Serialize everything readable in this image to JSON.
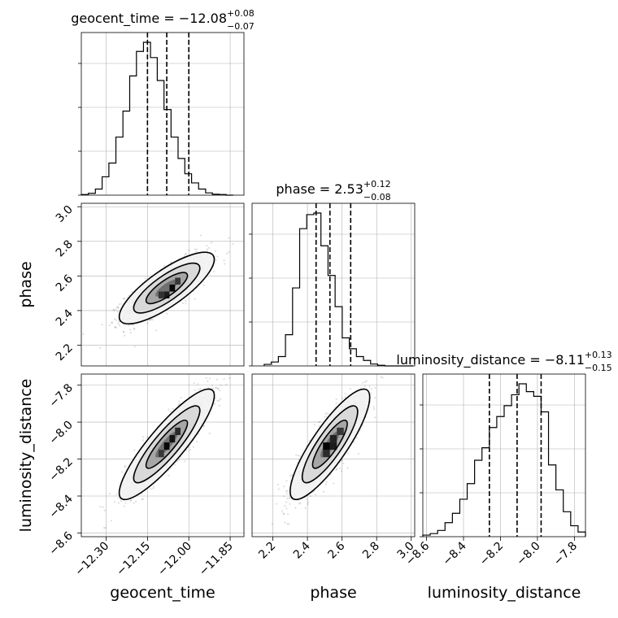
{
  "chart_data": {
    "type": "corner",
    "parameters": [
      {
        "name": "geocent_time",
        "title_prefix": "geocent_time = ",
        "median": "−12.08",
        "err_plus": "+0.08",
        "err_minus": "−0.07",
        "range": [
          -12.39,
          -11.8
        ],
        "ticks": [
          -12.3,
          -12.15,
          -12.0,
          -11.85
        ],
        "tick_labels": [
          "−12.30",
          "−12.15",
          "−12.00",
          "−11.85"
        ],
        "quantiles": [
          -12.15,
          -12.08,
          -12.0
        ],
        "hist_bins": [
          -12.39,
          -12.3645,
          -12.339,
          -12.3145,
          -12.29,
          -12.2645,
          -12.239,
          -12.2145,
          -12.19,
          -12.1645,
          -12.139,
          -12.1145,
          -12.09,
          -12.0645,
          -12.039,
          -12.0145,
          -11.99,
          -11.9645,
          -11.939,
          -11.9145,
          -11.89,
          -11.8645,
          -11.839
        ],
        "hist_heights": [
          0.004,
          0.012,
          0.04,
          0.12,
          0.21,
          0.38,
          0.55,
          0.78,
          0.94,
          1.0,
          0.9,
          0.75,
          0.56,
          0.38,
          0.24,
          0.14,
          0.08,
          0.04,
          0.015,
          0.006,
          0.004,
          0.0
        ]
      },
      {
        "name": "phase",
        "title_prefix": "phase = ",
        "median": "2.53",
        "err_plus": "+0.12",
        "err_minus": "−0.08",
        "range": [
          2.08,
          3.02
        ],
        "ticks": [
          2.2,
          2.4,
          2.6,
          2.8,
          3.0
        ],
        "tick_labels": [
          "2.2",
          "2.4",
          "2.6",
          "2.8",
          "3.0"
        ],
        "quantiles": [
          2.45,
          2.53,
          2.65
        ],
        "hist_bins": [
          2.15,
          2.191,
          2.232,
          2.273,
          2.314,
          2.355,
          2.396,
          2.437,
          2.478,
          2.519,
          2.56,
          2.601,
          2.642,
          2.683,
          2.724,
          2.765,
          2.806,
          2.847,
          2.888,
          2.929,
          2.97,
          3.011
        ],
        "hist_heights": [
          0.01,
          0.025,
          0.06,
          0.2,
          0.5,
          0.88,
          0.97,
          0.98,
          0.77,
          0.58,
          0.38,
          0.18,
          0.11,
          0.06,
          0.035,
          0.012,
          0.004,
          0.0,
          0.0,
          0.0,
          0.0
        ]
      },
      {
        "name": "luminosity_distance",
        "title_prefix": "luminosity_distance = ",
        "median": "−8.11",
        "err_plus": "+0.13",
        "err_minus": "−0.15",
        "range": [
          -8.62,
          -7.74
        ],
        "ticks": [
          -8.6,
          -8.4,
          -8.2,
          -8.0,
          -7.8
        ],
        "tick_labels": [
          "−8.6",
          "−8.4",
          "−8.2",
          "−8.0",
          "−7.8"
        ],
        "quantiles": [
          -8.26,
          -8.11,
          -7.98
        ],
        "hist_bins": [
          -8.62,
          -8.58,
          -8.54,
          -8.5,
          -8.46,
          -8.42,
          -8.38,
          -8.34,
          -8.3,
          -8.26,
          -8.22,
          -8.18,
          -8.14,
          -8.1,
          -8.06,
          -8.02,
          -7.98,
          -7.94,
          -7.9,
          -7.86,
          -7.82,
          -7.78,
          -7.74
        ],
        "hist_heights": [
          0.01,
          0.02,
          0.04,
          0.09,
          0.15,
          0.24,
          0.34,
          0.49,
          0.57,
          0.7,
          0.77,
          0.84,
          0.91,
          0.98,
          0.93,
          0.9,
          0.8,
          0.46,
          0.3,
          0.16,
          0.07,
          0.03
        ]
      }
    ],
    "pairs": [
      {
        "x": "geocent_time",
        "y": "phase",
        "center": [
          -12.08,
          2.53
        ],
        "sigma": [
          0.075,
          0.09
        ],
        "rho": 0.8,
        "hot_cells": [
          {
            "x": -12.07,
            "y": 2.51,
            "w": 0.02,
            "h": 0.04,
            "level": 0.95
          },
          {
            "x": -12.09,
            "y": 2.47,
            "w": 0.02,
            "h": 0.04,
            "level": 0.8
          },
          {
            "x": -12.11,
            "y": 2.47,
            "w": 0.02,
            "h": 0.04,
            "level": 0.65
          },
          {
            "x": -12.05,
            "y": 2.55,
            "w": 0.02,
            "h": 0.04,
            "level": 0.6
          }
        ]
      },
      {
        "x": "geocent_time",
        "y": "luminosity_distance",
        "center": [
          -12.08,
          -8.12
        ],
        "sigma": [
          0.075,
          0.13
        ],
        "rho": 0.88,
        "hot_cells": [
          {
            "x": -12.09,
            "y": -8.15,
            "w": 0.02,
            "h": 0.04,
            "level": 0.95
          },
          {
            "x": -12.07,
            "y": -8.11,
            "w": 0.02,
            "h": 0.04,
            "level": 0.85
          },
          {
            "x": -12.05,
            "y": -8.07,
            "w": 0.02,
            "h": 0.04,
            "level": 0.7
          },
          {
            "x": -12.11,
            "y": -8.19,
            "w": 0.02,
            "h": 0.04,
            "level": 0.6
          }
        ]
      },
      {
        "x": "phase",
        "y": "luminosity_distance",
        "center": [
          2.53,
          -8.12
        ],
        "sigma": [
          0.1,
          0.13
        ],
        "rho": 0.85,
        "hot_cells": [
          {
            "x": 2.49,
            "y": -8.15,
            "w": 0.04,
            "h": 0.04,
            "level": 1.0
          },
          {
            "x": 2.53,
            "y": -8.15,
            "w": 0.04,
            "h": 0.04,
            "level": 0.8
          },
          {
            "x": 2.53,
            "y": -8.11,
            "w": 0.04,
            "h": 0.04,
            "level": 0.75
          },
          {
            "x": 2.49,
            "y": -8.19,
            "w": 0.04,
            "h": 0.04,
            "level": 0.7
          },
          {
            "x": 2.57,
            "y": -8.07,
            "w": 0.04,
            "h": 0.04,
            "level": 0.6
          }
        ]
      }
    ],
    "grid": true
  }
}
